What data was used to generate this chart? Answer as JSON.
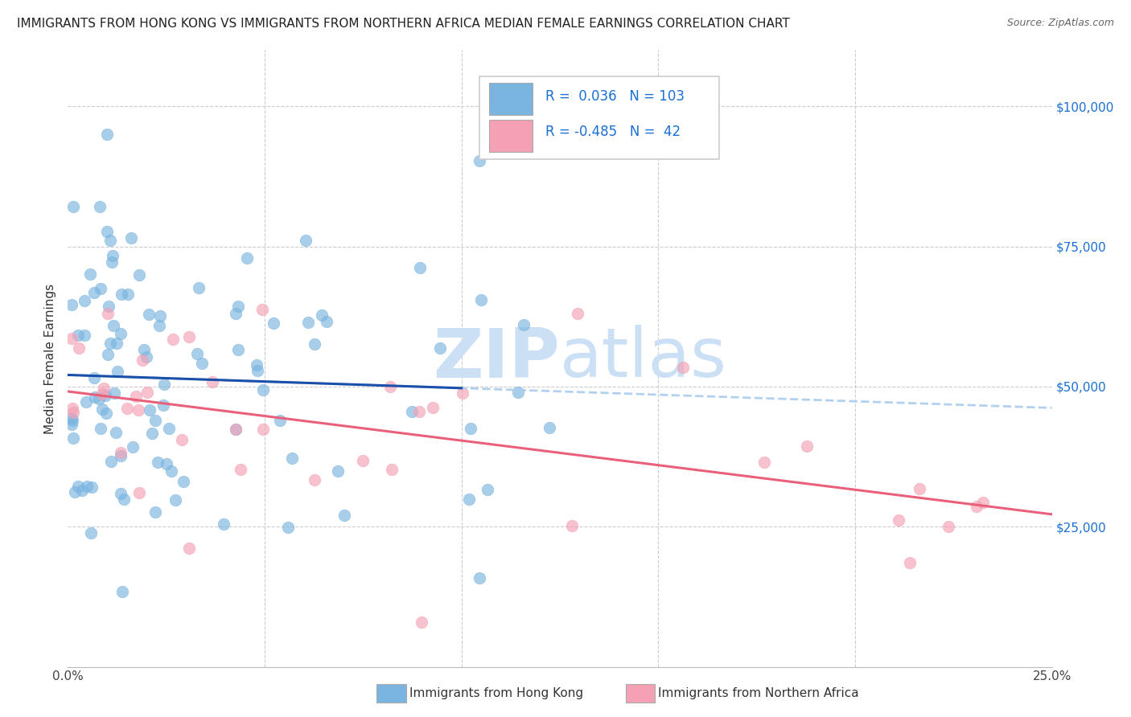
{
  "title": "IMMIGRANTS FROM HONG KONG VS IMMIGRANTS FROM NORTHERN AFRICA MEDIAN FEMALE EARNINGS CORRELATION CHART",
  "source": "Source: ZipAtlas.com",
  "ylabel": "Median Female Earnings",
  "xlim": [
    0.0,
    0.25
  ],
  "ylim": [
    0,
    110000
  ],
  "yticks": [
    0,
    25000,
    50000,
    75000,
    100000
  ],
  "ytick_labels": [
    "",
    "$25,000",
    "$50,000",
    "$75,000",
    "$100,000"
  ],
  "xticks": [
    0.0,
    0.05,
    0.1,
    0.15,
    0.2,
    0.25
  ],
  "xtick_labels": [
    "0.0%",
    "",
    "",
    "",
    "",
    "25.0%"
  ],
  "hk_R": 0.036,
  "hk_N": 103,
  "na_R": -0.485,
  "na_N": 42,
  "hk_color": "#7ab5e0",
  "hk_line_color": "#1a4faa",
  "hk_dash_color": "#aaccee",
  "na_color": "#f4a0b5",
  "na_line_color": "#e8607a",
  "watermark_zip": "ZIP",
  "watermark_atlas": "atlas",
  "watermark_color": "#cce0f5",
  "background_color": "#ffffff",
  "grid_color": "#cccccc",
  "title_fontsize": 11,
  "legend_color": "#1a6fd4",
  "legend_black": "#222222"
}
